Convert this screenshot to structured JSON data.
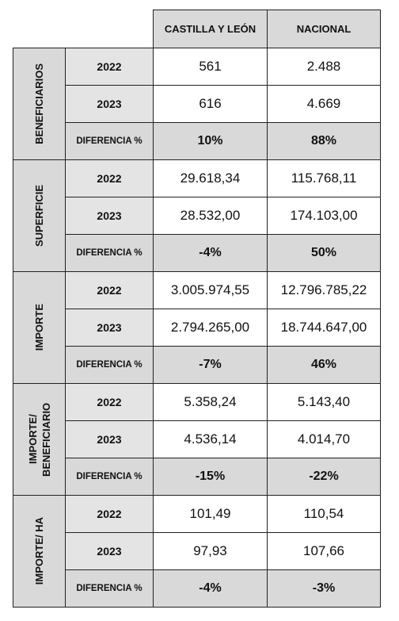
{
  "header": {
    "columns": [
      "CASTILLA Y LEÓN",
      "NACIONAL"
    ]
  },
  "groups": [
    {
      "label": "BENEFICIARIOS",
      "rows": [
        {
          "label": "2022",
          "values": [
            "561",
            "2.488"
          ]
        },
        {
          "label": "2023",
          "values": [
            "616",
            "4.669"
          ]
        },
        {
          "label": "DIFERENCIA %",
          "values": [
            "10%",
            "88%"
          ]
        }
      ]
    },
    {
      "label": "SUPERFICIE",
      "rows": [
        {
          "label": "2022",
          "values": [
            "29.618,34",
            "115.768,11"
          ]
        },
        {
          "label": "2023",
          "values": [
            "28.532,00",
            "174.103,00"
          ]
        },
        {
          "label": "DIFERENCIA %",
          "values": [
            "-4%",
            "50%"
          ]
        }
      ]
    },
    {
      "label": "IMPORTE",
      "rows": [
        {
          "label": "2022",
          "values": [
            "3.005.974,55",
            "12.796.785,22"
          ]
        },
        {
          "label": "2023",
          "values": [
            "2.794.265,00",
            "18.744.647,00"
          ]
        },
        {
          "label": "DIFERENCIA %",
          "values": [
            "-7%",
            "46%"
          ]
        }
      ]
    },
    {
      "label": "IMPORTE/ BENEFICIARIO",
      "rows": [
        {
          "label": "2022",
          "values": [
            "5.358,24",
            "5.143,40"
          ]
        },
        {
          "label": "2023",
          "values": [
            "4.536,14",
            "4.014,70"
          ]
        },
        {
          "label": "DIFERENCIA %",
          "values": [
            "-15%",
            "-22%"
          ]
        }
      ]
    },
    {
      "label": "IMPORTE/ HA",
      "rows": [
        {
          "label": "2022",
          "values": [
            "101,49",
            "110,54"
          ]
        },
        {
          "label": "2023",
          "values": [
            "97,93",
            "107,66"
          ]
        },
        {
          "label": "DIFERENCIA %",
          "values": [
            "-4%",
            "-3%"
          ]
        }
      ]
    }
  ]
}
